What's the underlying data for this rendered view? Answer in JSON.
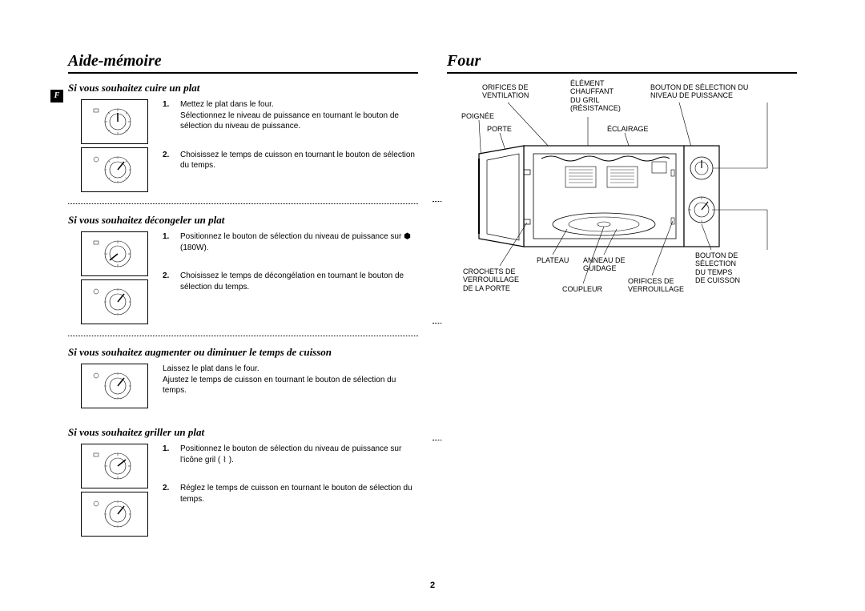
{
  "left": {
    "title": "Aide-mémoire",
    "tag": "F",
    "sections": [
      {
        "heading": "Si vous souhaitez cuire un plat",
        "dialCount": 2,
        "steps": [
          {
            "n": "1.",
            "text": "Mettez le plat dans le four.\nSélectionnez le niveau de puissance en tournant le bouton de sélection du niveau de puissance."
          },
          {
            "n": "2.",
            "text": "Choisissez le temps de cuisson en tournant le bouton de sélection du temps."
          }
        ]
      },
      {
        "heading": "Si vous souhaitez décongeler un plat",
        "dialCount": 2,
        "steps": [
          {
            "n": "1.",
            "text": "Positionnez le bouton de sélection du niveau de puissance sur ⬢ (180W)."
          },
          {
            "n": "2.",
            "text": "Choisissez le temps de décongélation en tournant le bouton de sélection du temps."
          }
        ]
      },
      {
        "heading": "Si vous souhaitez augmenter ou diminuer le temps de cuisson",
        "dialCount": 1,
        "plain": "Laissez le plat dans le four.\nAjustez le temps de cuisson en tournant le bouton de sélection du temps."
      },
      {
        "heading": "Si vous souhaitez griller un plat",
        "dialCount": 2,
        "steps": [
          {
            "n": "1.",
            "text": "Positionnez le bouton de sélection du niveau de puissance sur l'icône gril ( ⌇ )."
          },
          {
            "n": "2.",
            "text": "Réglez le temps de cuisson en tournant le bouton de sélection du temps."
          }
        ]
      }
    ]
  },
  "right": {
    "title": "Four",
    "labels": {
      "orifices_vent": "ORIFICES DE\nVENTILATION",
      "element_gril": "ÉLÉMENT\nCHAUFFANT\nDU GRIL\n(RÉSISTANCE)",
      "bouton_puissance": "BOUTON DE SÉLECTION DU\nNIVEAU DE PUISSANCE",
      "poignee": "POIGNÉE",
      "porte": "PORTE",
      "eclairage": "ÉCLAIRAGE",
      "plateau": "PLATEAU",
      "anneau": "ANNEAU DE\nGUIDAGE",
      "crochets": "CROCHETS DE\nVERROUILLAGE\nDE LA PORTE",
      "coupleur": "COUPLEUR",
      "orifices_verr": "ORIFICES DE\nVERROUILLAGE",
      "bouton_temps": "BOUTON DE\nSÉLECTION\nDU TEMPS\nDE CUISSON"
    }
  },
  "pageNumber": "2",
  "colors": {
    "text": "#000000",
    "bg": "#ffffff",
    "rule": "#000000"
  }
}
